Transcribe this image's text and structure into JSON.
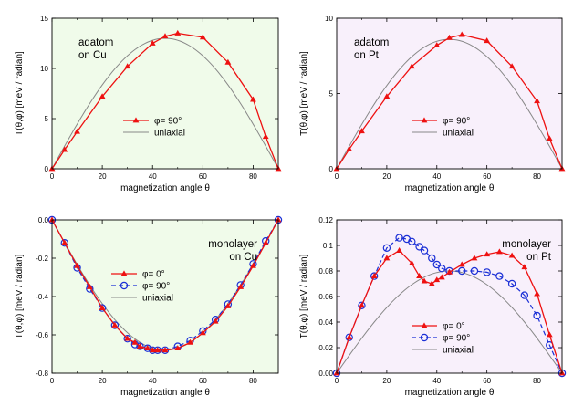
{
  "colors": {
    "red": "#ee1111",
    "blue": "#1a2fd6",
    "gray": "#888888",
    "bg_cu": "#f0fbea",
    "bg_pt": "#f8f0fb"
  },
  "chart_data": [
    {
      "type": "line",
      "panel": "top-left",
      "xlabel": "magnetization angle θ",
      "ylabel": "T(θ,φ)   [meV / radian]",
      "xlim": [
        0,
        90
      ],
      "ylim": [
        0,
        15
      ],
      "xticks": [
        0,
        20,
        40,
        60,
        80
      ],
      "xtick_labels": [
        "0",
        "20",
        "40",
        "60",
        "80"
      ],
      "yticks": [
        0,
        5,
        10,
        15
      ],
      "ytick_labels": [
        "0",
        "5",
        "10",
        "15"
      ],
      "background": "bg_cu",
      "annotation": [
        "adatom",
        "on Cu"
      ],
      "legend_position": "lower-center",
      "series": [
        {
          "name": "φ= 90°",
          "style": "red-triangle",
          "x": [
            0,
            5,
            10,
            20,
            30,
            40,
            45,
            50,
            60,
            70,
            80,
            85,
            90
          ],
          "y": [
            0,
            1.9,
            3.7,
            7.2,
            10.2,
            12.5,
            13.2,
            13.5,
            13.1,
            10.6,
            6.9,
            3.2,
            0
          ]
        },
        {
          "name": "uniaxial",
          "style": "gray-sin",
          "amplitude": 13.0
        }
      ]
    },
    {
      "type": "line",
      "panel": "top-right",
      "xlabel": "magnetization angle θ",
      "ylabel": "T(θ,φ)   [meV / radian]",
      "xlim": [
        0,
        90
      ],
      "ylim": [
        0,
        10
      ],
      "xticks": [
        0,
        20,
        40,
        60,
        80
      ],
      "xtick_labels": [
        "0",
        "20",
        "40",
        "60",
        "80"
      ],
      "yticks": [
        0,
        5,
        10
      ],
      "ytick_labels": [
        "0",
        "5",
        "10"
      ],
      "background": "bg_pt",
      "annotation": [
        "adatom",
        "on Pt"
      ],
      "legend_position": "lower-center",
      "series": [
        {
          "name": "φ= 90°",
          "style": "red-triangle",
          "x": [
            0,
            5,
            10,
            20,
            30,
            40,
            45,
            50,
            60,
            70,
            80,
            85,
            90
          ],
          "y": [
            0,
            1.3,
            2.5,
            4.8,
            6.8,
            8.2,
            8.7,
            8.9,
            8.5,
            6.8,
            4.5,
            2.0,
            0
          ]
        },
        {
          "name": "uniaxial",
          "style": "gray-sin",
          "amplitude": 8.6
        }
      ]
    },
    {
      "type": "line",
      "panel": "bottom-left",
      "xlabel": "magnetization angle θ",
      "ylabel": "T(θ,φ)   [meV / radian]",
      "xlim": [
        0,
        90
      ],
      "ylim": [
        -0.8,
        0.0
      ],
      "xticks": [
        0,
        20,
        40,
        60,
        80
      ],
      "xtick_labels": [
        "0",
        "20",
        "40",
        "60",
        "80"
      ],
      "yticks": [
        -0.8,
        -0.6,
        -0.4,
        -0.2,
        0.0
      ],
      "ytick_labels": [
        "-0.8",
        "-0.6",
        "-0.4",
        "-0.2",
        "0.0"
      ],
      "background": "bg_cu",
      "annotation": [
        "monolayer",
        "on Cu"
      ],
      "legend_position": "center-left",
      "series": [
        {
          "name": "φ= 0°",
          "style": "red-triangle",
          "x": [
            0,
            5,
            10,
            15,
            20,
            25,
            30,
            33,
            35,
            38,
            40,
            42,
            45,
            50,
            55,
            60,
            65,
            70,
            75,
            80,
            85,
            90
          ],
          "y": [
            0,
            -0.12,
            -0.24,
            -0.35,
            -0.46,
            -0.55,
            -0.62,
            -0.64,
            -0.66,
            -0.67,
            -0.68,
            -0.68,
            -0.68,
            -0.67,
            -0.64,
            -0.59,
            -0.53,
            -0.45,
            -0.35,
            -0.24,
            -0.12,
            0
          ]
        },
        {
          "name": "φ= 90°",
          "style": "blue-circle",
          "x": [
            0,
            5,
            10,
            15,
            20,
            25,
            30,
            33,
            35,
            38,
            40,
            42,
            45,
            50,
            55,
            60,
            65,
            70,
            75,
            80,
            85,
            90
          ],
          "y": [
            0,
            -0.12,
            -0.25,
            -0.36,
            -0.46,
            -0.55,
            -0.62,
            -0.65,
            -0.66,
            -0.67,
            -0.68,
            -0.68,
            -0.68,
            -0.66,
            -0.63,
            -0.58,
            -0.52,
            -0.44,
            -0.34,
            -0.23,
            -0.11,
            0
          ]
        },
        {
          "name": "uniaxial",
          "style": "gray-sin",
          "amplitude": -0.68
        }
      ]
    },
    {
      "type": "line",
      "panel": "bottom-right",
      "xlabel": "magnetization angle θ",
      "ylabel": "T(θ,φ)   [meV / radian]",
      "xlim": [
        0,
        90
      ],
      "ylim": [
        0,
        0.12
      ],
      "xticks": [
        0,
        20,
        40,
        60,
        80
      ],
      "xtick_labels": [
        "0",
        "20",
        "40",
        "60",
        "80"
      ],
      "yticks": [
        0,
        0.02,
        0.04,
        0.06,
        0.08,
        0.1,
        0.12
      ],
      "ytick_labels": [
        "0.00",
        "0.02",
        "0.04",
        "0.06",
        "0.08",
        "0.1",
        "0.12"
      ],
      "background": "bg_pt",
      "annotation": [
        "monolayer",
        "on Pt"
      ],
      "legend_position": "lower-center",
      "series": [
        {
          "name": "φ= 0°",
          "style": "red-triangle",
          "x": [
            0,
            5,
            10,
            15,
            20,
            25,
            30,
            33,
            35,
            38,
            40,
            42,
            45,
            50,
            55,
            60,
            65,
            70,
            75,
            80,
            85,
            90
          ],
          "y": [
            0,
            0.028,
            0.053,
            0.076,
            0.09,
            0.096,
            0.086,
            0.076,
            0.072,
            0.07,
            0.073,
            0.075,
            0.079,
            0.085,
            0.09,
            0.093,
            0.095,
            0.092,
            0.083,
            0.062,
            0.03,
            0
          ]
        },
        {
          "name": "φ= 90°",
          "style": "blue-circle",
          "x": [
            0,
            5,
            10,
            15,
            20,
            25,
            28,
            30,
            33,
            35,
            38,
            40,
            42,
            45,
            50,
            55,
            60,
            65,
            70,
            75,
            80,
            85,
            90
          ],
          "y": [
            0,
            0.028,
            0.053,
            0.076,
            0.098,
            0.106,
            0.105,
            0.103,
            0.099,
            0.096,
            0.09,
            0.085,
            0.082,
            0.08,
            0.08,
            0.08,
            0.079,
            0.076,
            0.07,
            0.061,
            0.045,
            0.022,
            0
          ]
        },
        {
          "name": "uniaxial",
          "style": "gray-sin",
          "amplitude": 0.08
        }
      ]
    }
  ]
}
